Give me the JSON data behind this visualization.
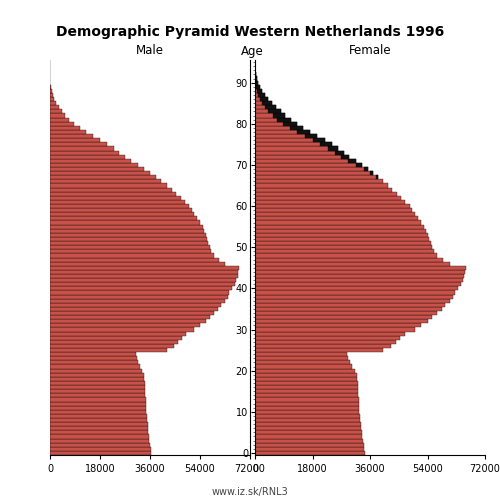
{
  "title": "Demographic Pyramid Western Netherlands 1996",
  "male_label": "Male",
  "female_label": "Female",
  "age_label": "Age",
  "footer": "www.iz.sk/RNL3",
  "xlim": 72000,
  "bar_color": "#c8524a",
  "excess_color": "#111111",
  "edge_color": "#000000",
  "bar_lw": 0.25,
  "ages": [
    0,
    1,
    2,
    3,
    4,
    5,
    6,
    7,
    8,
    9,
    10,
    11,
    12,
    13,
    14,
    15,
    16,
    17,
    18,
    19,
    20,
    21,
    22,
    23,
    24,
    25,
    26,
    27,
    28,
    29,
    30,
    31,
    32,
    33,
    34,
    35,
    36,
    37,
    38,
    39,
    40,
    41,
    42,
    43,
    44,
    45,
    46,
    47,
    48,
    49,
    50,
    51,
    52,
    53,
    54,
    55,
    56,
    57,
    58,
    59,
    60,
    61,
    62,
    63,
    64,
    65,
    66,
    67,
    68,
    69,
    70,
    71,
    72,
    73,
    74,
    75,
    76,
    77,
    78,
    79,
    80,
    81,
    82,
    83,
    84,
    85,
    86,
    87,
    88,
    89,
    90,
    91,
    92,
    93,
    94,
    95
  ],
  "male": [
    36500,
    36200,
    35900,
    35800,
    35600,
    35400,
    35200,
    35100,
    35000,
    34800,
    34700,
    34600,
    34500,
    34400,
    34300,
    34200,
    34100,
    34100,
    34000,
    33800,
    33200,
    32500,
    31800,
    31200,
    30800,
    42000,
    44500,
    46000,
    47500,
    49000,
    52000,
    54000,
    56000,
    57500,
    59000,
    60500,
    61500,
    63000,
    64000,
    64500,
    65500,
    66500,
    67000,
    67500,
    67800,
    68000,
    63000,
    61000,
    59000,
    58000,
    57500,
    57000,
    56500,
    56000,
    55500,
    55000,
    54000,
    53000,
    52000,
    51000,
    50000,
    48500,
    47000,
    45500,
    44000,
    42000,
    40000,
    38000,
    36000,
    34000,
    31500,
    29000,
    27000,
    25000,
    23000,
    20500,
    18000,
    15500,
    13000,
    10800,
    8800,
    7000,
    5500,
    4200,
    3100,
    2200,
    1500,
    950,
    550,
    290,
    140,
    65,
    28,
    11,
    4,
    1
  ],
  "female": [
    34500,
    34200,
    34000,
    33800,
    33600,
    33400,
    33200,
    33100,
    33000,
    32800,
    32700,
    32600,
    32500,
    32400,
    32300,
    32200,
    32100,
    32100,
    32000,
    31800,
    31200,
    30500,
    29800,
    29200,
    28800,
    40000,
    42500,
    44000,
    45500,
    47000,
    50000,
    52000,
    54000,
    55500,
    57000,
    58500,
    59500,
    61000,
    62000,
    62500,
    63500,
    64500,
    65000,
    65500,
    65800,
    66000,
    61000,
    59000,
    57000,
    56000,
    55500,
    55000,
    54500,
    54000,
    53500,
    53000,
    52000,
    51000,
    50000,
    49000,
    48500,
    47000,
    45800,
    44500,
    43000,
    41500,
    40000,
    38500,
    37000,
    35500,
    33500,
    31500,
    29500,
    27800,
    26000,
    24000,
    22000,
    19500,
    17200,
    15000,
    13200,
    11200,
    9500,
    8000,
    6500,
    5200,
    4100,
    3100,
    2200,
    1500,
    950,
    550,
    280,
    130,
    55,
    20
  ]
}
